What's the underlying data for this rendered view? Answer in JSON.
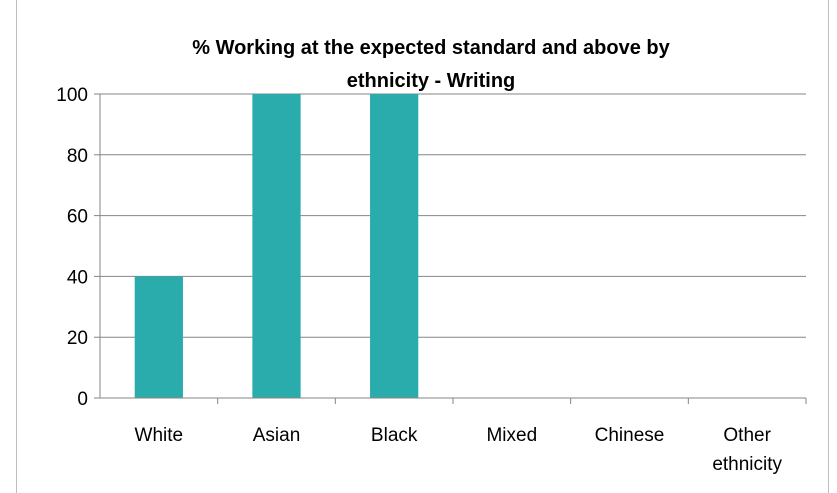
{
  "chart_data": {
    "type": "bar",
    "title_lines": [
      "% Working at the expected standard and above by",
      "ethnicity - Writing"
    ],
    "categories": [
      [
        "White"
      ],
      [
        "Asian"
      ],
      [
        "Black"
      ],
      [
        "Mixed"
      ],
      [
        "Chinese"
      ],
      [
        "Other",
        "ethnicity"
      ]
    ],
    "values": [
      40,
      100,
      100,
      0,
      0,
      0
    ],
    "ylim": [
      0,
      100
    ],
    "yticks": [
      "0",
      "20",
      "40",
      "60",
      "80",
      "100"
    ],
    "grid": true,
    "legend": "none",
    "bar_color": "#2aacac",
    "grid_color": "#868686"
  }
}
